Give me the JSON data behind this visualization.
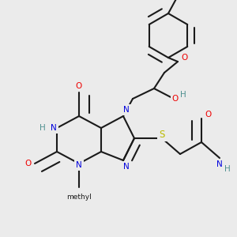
{
  "background_color": "#ebebeb",
  "bond_color": "#1a1a1a",
  "bond_lw": 1.5,
  "dbo": 0.013,
  "atom_colors": {
    "N": "#0000dd",
    "O": "#ee0000",
    "S": "#bbbb00",
    "Hg": "#4f9090",
    "C": "#1a1a1a"
  },
  "fs": 7.5,
  "figsize": [
    3.0,
    3.0
  ],
  "dpi": 100,
  "xlim": [
    0,
    300
  ],
  "ylim": [
    0,
    300
  ]
}
